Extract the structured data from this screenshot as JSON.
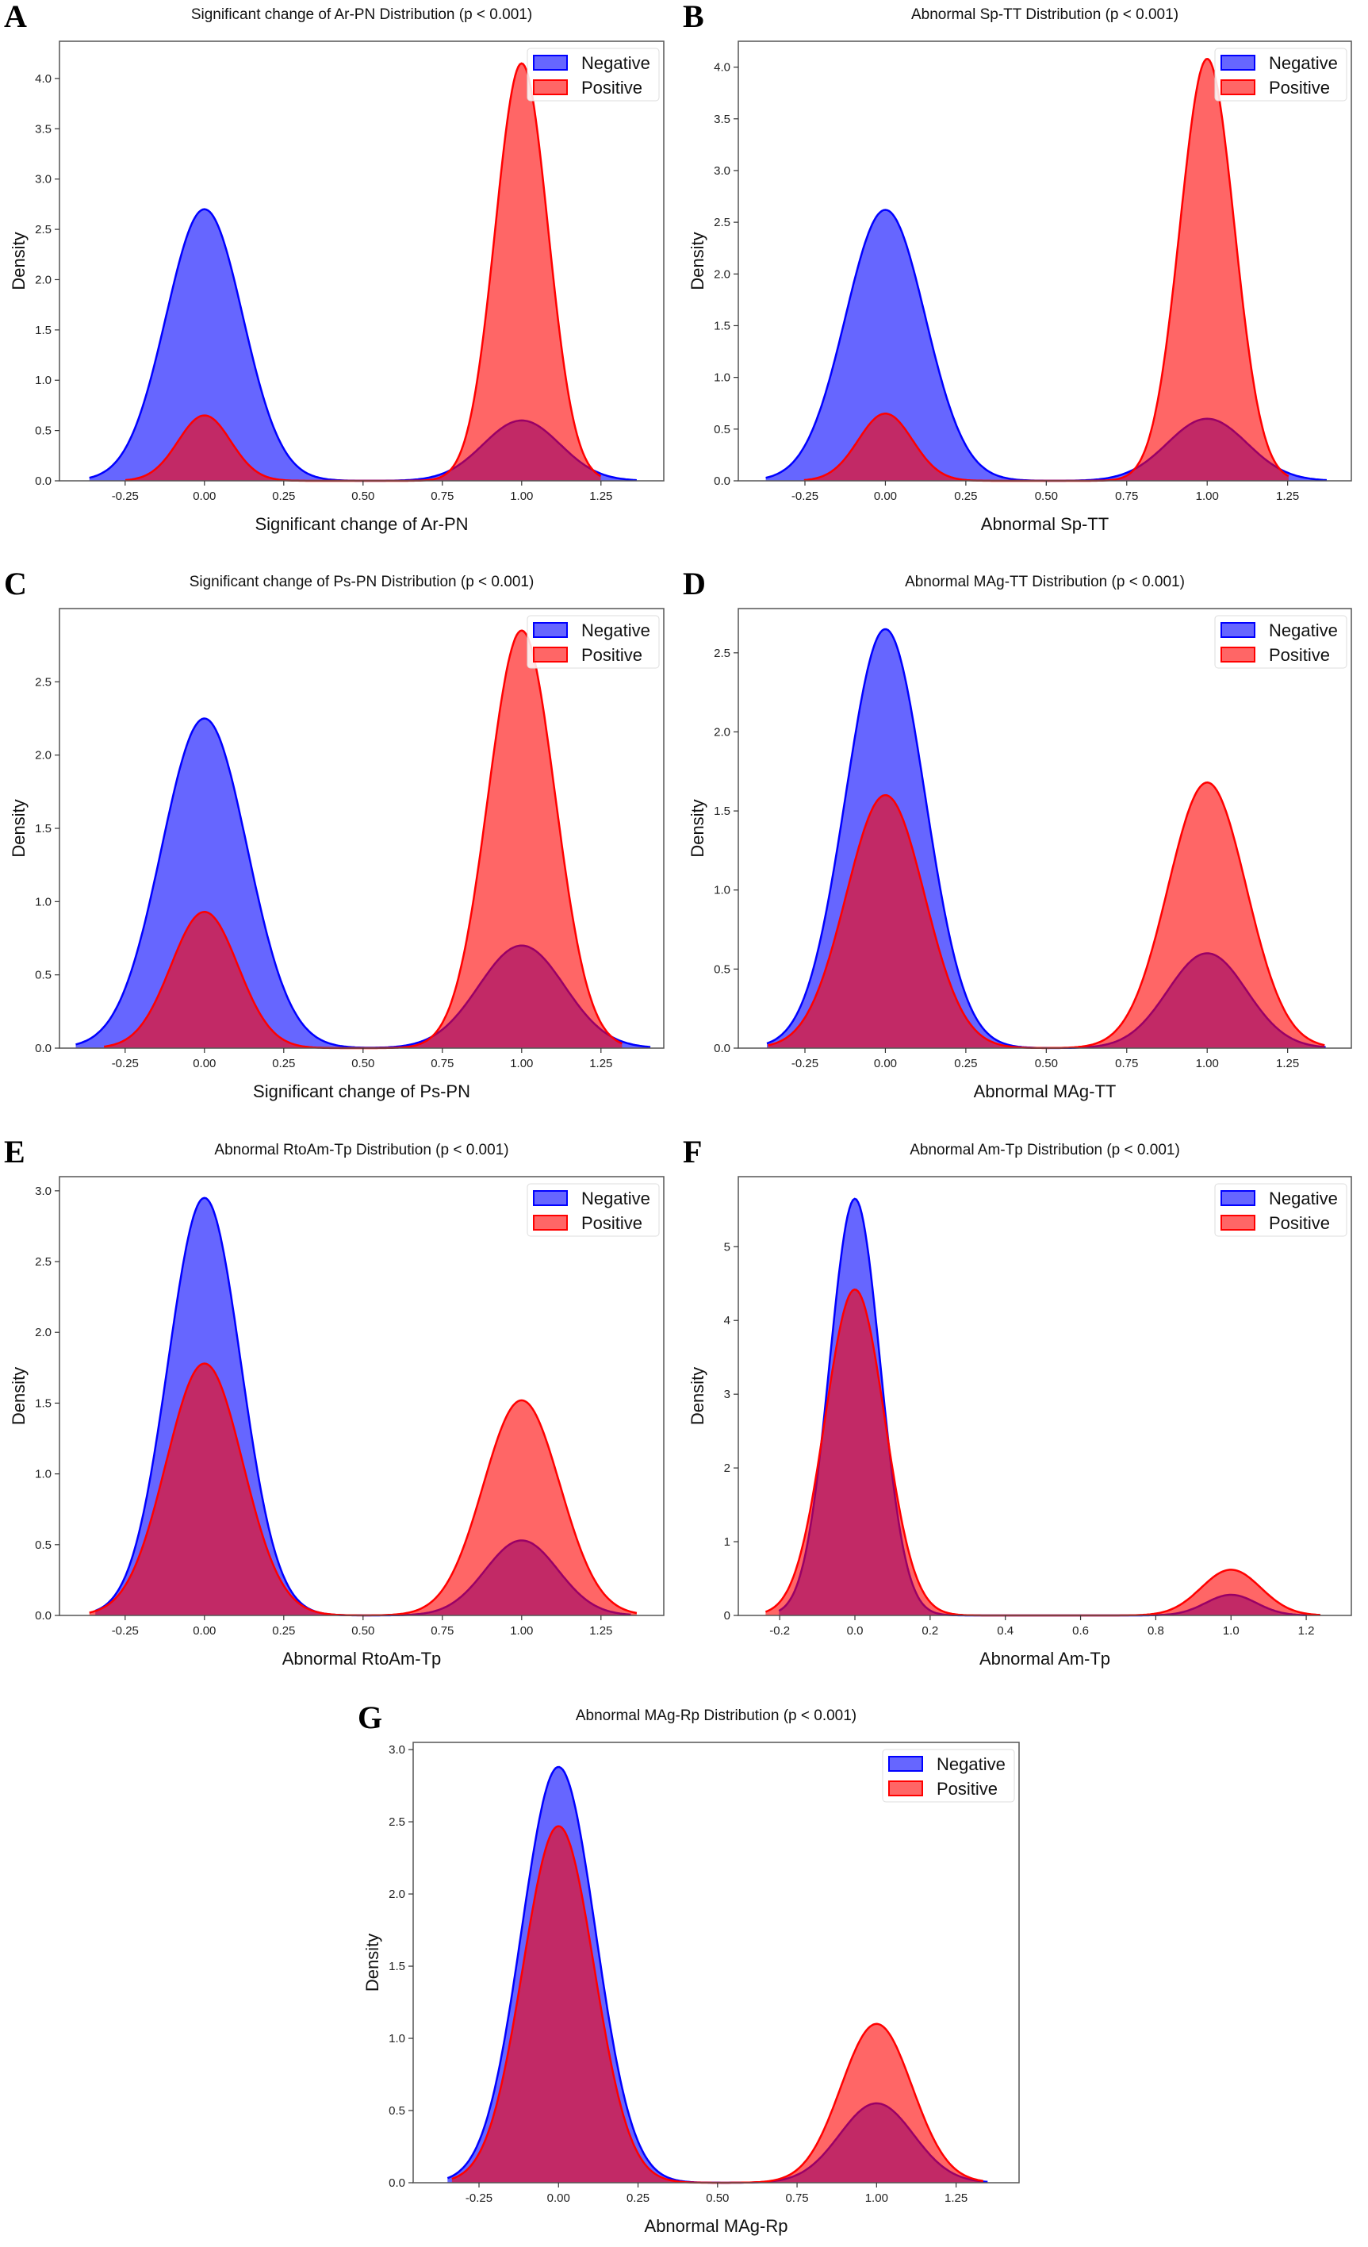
{
  "colors": {
    "negative": "#0000ff",
    "positive": "#ff0000"
  },
  "legend": [
    "Negative",
    "Positive"
  ],
  "chart_data": [
    {
      "type": "area",
      "panel": "A",
      "title": "Significant change of Ar-PN Distribution (p < 0.001)",
      "xlabel": "Significant change of Ar-PN",
      "ylabel": "Density",
      "xlim": [
        -0.457,
        1.448
      ],
      "ylim": [
        0,
        4.37
      ],
      "xticks": [
        "-0.25",
        "0.00",
        "0.25",
        "0.50",
        "0.75",
        "1.00",
        "1.25"
      ],
      "yticks": [
        "0.0",
        "0.5",
        "1.0",
        "1.5",
        "2.0",
        "2.5",
        "3.0",
        "3.5",
        "4.0"
      ],
      "legend": "top-right",
      "grid": false,
      "series": [
        {
          "name": "Negative",
          "density_at_0": 2.7,
          "density_at_1": 0.6
        },
        {
          "name": "Positive",
          "density_at_0": 0.65,
          "density_at_1": 4.15
        }
      ]
    },
    {
      "type": "area",
      "panel": "B",
      "title": "Abnormal Sp-TT Distribution (p < 0.001)",
      "xlabel": "Abnormal Sp-TT",
      "ylabel": "Density",
      "xlim": [
        -0.457,
        1.448
      ],
      "ylim": [
        0,
        4.25
      ],
      "xticks": [
        "-0.25",
        "0.00",
        "0.25",
        "0.50",
        "0.75",
        "1.00",
        "1.25"
      ],
      "yticks": [
        "0.0",
        "0.5",
        "1.0",
        "1.5",
        "2.0",
        "2.5",
        "3.0",
        "3.5",
        "4.0"
      ],
      "legend": "top-right",
      "grid": false,
      "series": [
        {
          "name": "Negative",
          "density_at_0": 2.62,
          "density_at_1": 0.6
        },
        {
          "name": "Positive",
          "density_at_0": 0.65,
          "density_at_1": 4.08
        }
      ]
    },
    {
      "type": "area",
      "panel": "C",
      "title": "Significant change of Ps-PN Distribution (p < 0.001)",
      "xlabel": "Significant change of Ps-PN",
      "ylabel": "Density",
      "xlim": [
        -0.457,
        1.448
      ],
      "ylim": [
        0,
        3.0
      ],
      "xticks": [
        "-0.25",
        "0.00",
        "0.25",
        "0.50",
        "0.75",
        "1.00",
        "1.25"
      ],
      "yticks": [
        "0.0",
        "0.5",
        "1.0",
        "1.5",
        "2.0",
        "2.5"
      ],
      "legend": "top-right",
      "grid": false,
      "series": [
        {
          "name": "Negative",
          "density_at_0": 2.25,
          "density_at_1": 0.7
        },
        {
          "name": "Positive",
          "density_at_0": 0.93,
          "density_at_1": 2.85
        }
      ]
    },
    {
      "type": "area",
      "panel": "D",
      "title": "Abnormal MAg-TT Distribution (p < 0.001)",
      "xlabel": "Abnormal MAg-TT",
      "ylabel": "Density",
      "xlim": [
        -0.457,
        1.448
      ],
      "ylim": [
        0,
        2.78
      ],
      "xticks": [
        "-0.25",
        "0.00",
        "0.25",
        "0.50",
        "0.75",
        "1.00",
        "1.25"
      ],
      "yticks": [
        "0.0",
        "0.5",
        "1.0",
        "1.5",
        "2.0",
        "2.5"
      ],
      "legend": "top-right",
      "grid": false,
      "series": [
        {
          "name": "Negative",
          "density_at_0": 2.65,
          "density_at_1": 0.6
        },
        {
          "name": "Positive",
          "density_at_0": 1.6,
          "density_at_1": 1.68
        }
      ]
    },
    {
      "type": "area",
      "panel": "E",
      "title": "Abnormal RtoAm-Tp Distribution (p < 0.001)",
      "xlabel": "Abnormal RtoAm-Tp",
      "ylabel": "Density",
      "xlim": [
        -0.457,
        1.448
      ],
      "ylim": [
        0,
        3.1
      ],
      "xticks": [
        "-0.25",
        "0.00",
        "0.25",
        "0.50",
        "0.75",
        "1.00",
        "1.25"
      ],
      "yticks": [
        "0.0",
        "0.5",
        "1.0",
        "1.5",
        "2.0",
        "2.5",
        "3.0"
      ],
      "legend": "top-right",
      "grid": false,
      "series": [
        {
          "name": "Negative",
          "density_at_0": 2.95,
          "density_at_1": 0.53
        },
        {
          "name": "Positive",
          "density_at_0": 1.78,
          "density_at_1": 1.52
        }
      ]
    },
    {
      "type": "area",
      "panel": "F",
      "title": "Abnormal Am-Tp Distribution (p < 0.001)",
      "xlabel": "Abnormal Am-Tp",
      "ylabel": "Density",
      "xlim": [
        -0.31,
        1.32
      ],
      "ylim": [
        0,
        5.95
      ],
      "xticks": [
        "-0.2",
        "0.0",
        "0.2",
        "0.4",
        "0.6",
        "0.8",
        "1.0",
        "1.2"
      ],
      "yticks": [
        "0",
        "1",
        "2",
        "3",
        "4",
        "5"
      ],
      "legend": "top-right",
      "grid": false,
      "series": [
        {
          "name": "Negative",
          "density_at_0": 5.65,
          "density_at_1": 0.28
        },
        {
          "name": "Positive",
          "density_at_0": 4.42,
          "density_at_1": 0.62
        }
      ]
    },
    {
      "type": "area",
      "panel": "G",
      "title": "Abnormal MAg-Rp Distribution (p < 0.001)",
      "xlabel": "Abnormal MAg-Rp",
      "ylabel": "Density",
      "xlim": [
        -0.457,
        1.448
      ],
      "ylim": [
        0,
        3.05
      ],
      "xticks": [
        "-0.25",
        "0.00",
        "0.25",
        "0.50",
        "0.75",
        "1.00",
        "1.25"
      ],
      "yticks": [
        "0.0",
        "0.5",
        "1.0",
        "1.5",
        "2.0",
        "2.5",
        "3.0"
      ],
      "legend": "top-right",
      "grid": false,
      "series": [
        {
          "name": "Negative",
          "density_at_0": 2.88,
          "density_at_1": 0.55
        },
        {
          "name": "Positive",
          "density_at_0": 2.47,
          "density_at_1": 1.1
        }
      ]
    }
  ]
}
